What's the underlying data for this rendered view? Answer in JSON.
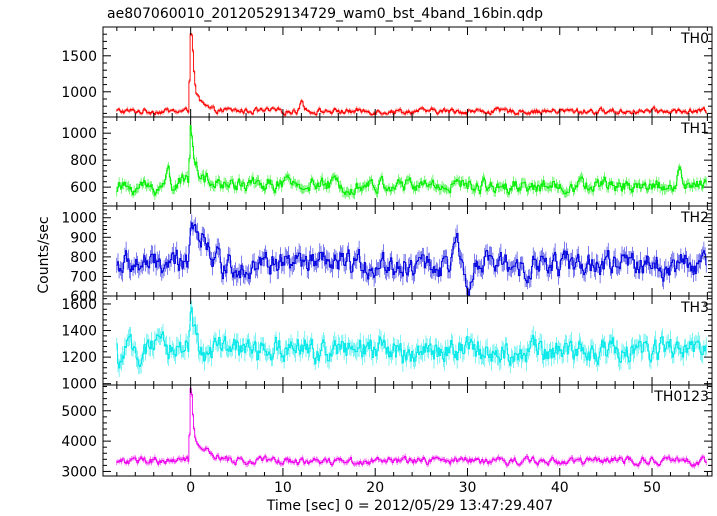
{
  "chart_data": {
    "type": "line",
    "title": "ae807060010_20120529134729_wam0_bst_4band_16bin.qdp",
    "xlabel": "Time [sec] 0 = 2012/05/29 13:47:29.407",
    "ylabel": "Counts/sec",
    "xlim": [
      -9.5,
      56.5
    ],
    "x_ticks": [
      0,
      10,
      20,
      30,
      40,
      50
    ],
    "x_tick_labels": [
      "0",
      "10",
      "20",
      "30",
      "40",
      "50"
    ],
    "grid": false,
    "panels": [
      {
        "name": "TH0",
        "color": "#ff0000",
        "ylim": [
          650,
          1900
        ],
        "ticks": [
          1000,
          1500
        ],
        "tick_labels": [
          "1000",
          "1500"
        ],
        "series": {
          "t_start": -8,
          "t_end": 55.9,
          "base": 730,
          "noise": 35,
          "features": [
            {
              "t": -0.2,
              "value": 780
            },
            {
              "t": 0.0,
              "value": 1850
            },
            {
              "t": 0.15,
              "value": 1800
            },
            {
              "t": 0.3,
              "value": 1500
            },
            {
              "t": 0.45,
              "value": 1150
            },
            {
              "t": 0.6,
              "value": 960
            },
            {
              "t": 1.0,
              "value": 870
            },
            {
              "t": 1.6,
              "value": 790
            },
            {
              "t": 2.5,
              "value": 740
            },
            {
              "t": 11.5,
              "value": 730
            },
            {
              "t": 12.0,
              "value": 880
            },
            {
              "t": 12.6,
              "value": 740
            }
          ]
        }
      },
      {
        "name": "TH1",
        "color": "#00ee00",
        "ylim": [
          460,
          1120
        ],
        "ticks": [
          600,
          800,
          1000
        ],
        "tick_labels": [
          "600",
          "800",
          "1000"
        ],
        "series": {
          "t_start": -8,
          "t_end": 55.9,
          "base": 600,
          "noise": 45,
          "features": [
            {
              "t": -2.8,
              "value": 600
            },
            {
              "t": -2.4,
              "value": 760
            },
            {
              "t": -2.0,
              "value": 620
            },
            {
              "t": -0.2,
              "value": 640
            },
            {
              "t": 0.0,
              "value": 1090
            },
            {
              "t": 0.2,
              "value": 1000
            },
            {
              "t": 0.4,
              "value": 840
            },
            {
              "t": 0.7,
              "value": 750
            },
            {
              "t": 1.2,
              "value": 680
            },
            {
              "t": 2.2,
              "value": 620
            },
            {
              "t": 52.5,
              "value": 610
            },
            {
              "t": 53.0,
              "value": 740
            },
            {
              "t": 53.5,
              "value": 620
            }
          ]
        }
      },
      {
        "name": "TH2",
        "color": "#0000dd",
        "ylim": [
          600,
          1060
        ],
        "ticks": [
          600,
          700,
          800,
          900,
          1000
        ],
        "tick_labels": [
          "600",
          "700",
          "800",
          "900",
          "1000"
        ],
        "series": {
          "t_start": -8,
          "t_end": 55.9,
          "base": 760,
          "noise": 55,
          "features": [
            {
              "t": -0.3,
              "value": 780
            },
            {
              "t": 0.0,
              "value": 1030
            },
            {
              "t": 0.4,
              "value": 990
            },
            {
              "t": 0.9,
              "value": 930
            },
            {
              "t": 1.6,
              "value": 880
            },
            {
              "t": 2.6,
              "value": 800
            },
            {
              "t": 3.5,
              "value": 760
            },
            {
              "t": 28.2,
              "value": 760
            },
            {
              "t": 28.8,
              "value": 880
            },
            {
              "t": 29.5,
              "value": 700
            },
            {
              "t": 30.2,
              "value": 620
            },
            {
              "t": 30.9,
              "value": 760
            }
          ]
        }
      },
      {
        "name": "TH3",
        "color": "#00e8e8",
        "ylim": [
          990,
          1660
        ],
        "ticks": [
          1000,
          1200,
          1400,
          1600
        ],
        "tick_labels": [
          "1000",
          "1200",
          "1400",
          "1600"
        ],
        "series": {
          "t_start": -8,
          "t_end": 55.9,
          "base": 1250,
          "noise": 80,
          "features": [
            {
              "t": -8.0,
              "value": 1080
            },
            {
              "t": -7.3,
              "value": 1230
            },
            {
              "t": -0.2,
              "value": 1290
            },
            {
              "t": 0.0,
              "value": 1620
            },
            {
              "t": 0.3,
              "value": 1450
            },
            {
              "t": 0.8,
              "value": 1300
            }
          ]
        }
      },
      {
        "name": "TH0123",
        "color": "#ee00ee",
        "ylim": [
          2850,
          5850
        ],
        "ticks": [
          3000,
          4000,
          5000
        ],
        "tick_labels": [
          "3000",
          "4000",
          "5000"
        ],
        "series": {
          "t_start": -8,
          "t_end": 55.9,
          "base": 3350,
          "noise": 110,
          "features": [
            {
              "t": -0.2,
              "value": 3450
            },
            {
              "t": 0.0,
              "value": 5700
            },
            {
              "t": 0.15,
              "value": 5500
            },
            {
              "t": 0.35,
              "value": 4400
            },
            {
              "t": 0.6,
              "value": 4000
            },
            {
              "t": 1.2,
              "value": 3800
            },
            {
              "t": 2.2,
              "value": 3550
            },
            {
              "t": 3.5,
              "value": 3400
            }
          ]
        }
      }
    ]
  }
}
